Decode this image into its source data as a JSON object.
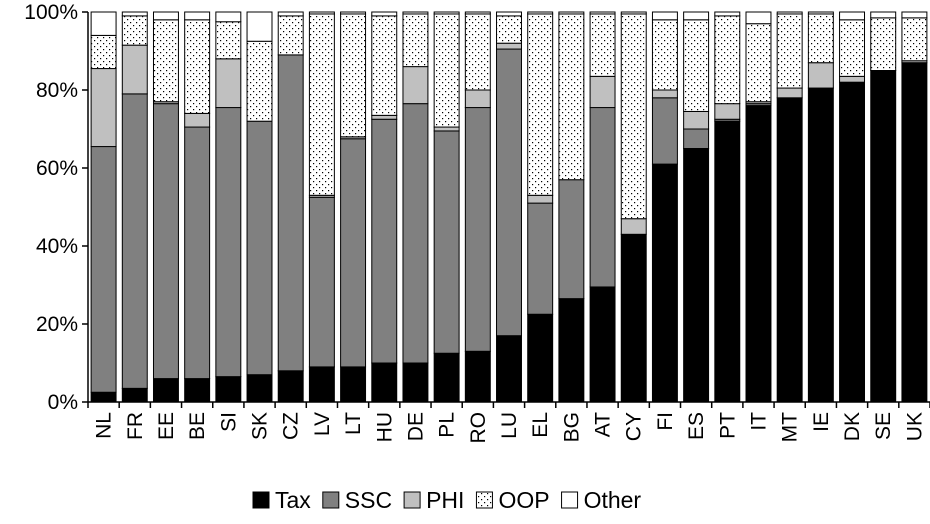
{
  "chart_data": {
    "type": "bar",
    "stacked": true,
    "categories": [
      "NL",
      "FR",
      "EE",
      "BE",
      "SI",
      "SK",
      "CZ",
      "LV",
      "LT",
      "HU",
      "DE",
      "PL",
      "RO",
      "LU",
      "EL",
      "BG",
      "AT",
      "CY",
      "FI",
      "ES",
      "PT",
      "IT",
      "MT",
      "IE",
      "DK",
      "SE",
      "UK"
    ],
    "ylim": [
      0,
      100
    ],
    "yticks": [
      "0%",
      "20%",
      "40%",
      "60%",
      "80%",
      "100%"
    ],
    "legend_position": "bottom",
    "grid": false,
    "series": [
      {
        "name": "Tax",
        "fill": "#000000",
        "pattern": "solid",
        "values": [
          2.5,
          3.5,
          6,
          6,
          6.5,
          7,
          8,
          9,
          9,
          10,
          10,
          12.5,
          13,
          17,
          22.5,
          26.5,
          29.5,
          43,
          61,
          65,
          72,
          76,
          78,
          80.5,
          82,
          85,
          87
        ]
      },
      {
        "name": "SSC",
        "fill": "#808080",
        "pattern": "solid",
        "values": [
          63,
          75.5,
          70.5,
          64.5,
          69,
          65,
          81,
          43.5,
          58.5,
          62.5,
          66.5,
          57,
          62.5,
          73.5,
          28.5,
          30.5,
          46,
          0,
          17,
          5,
          0.5,
          0.5,
          0,
          0,
          0,
          0,
          0
        ]
      },
      {
        "name": "PHI",
        "fill": "#c0c0c0",
        "pattern": "solid",
        "values": [
          20,
          12.5,
          0.5,
          3.5,
          12.5,
          0,
          0,
          0.5,
          0.5,
          1,
          9.5,
          1,
          4.5,
          1.5,
          2,
          0,
          8,
          4,
          2,
          4.5,
          4,
          0.5,
          2.5,
          6.5,
          1.5,
          0,
          0.5
        ]
      },
      {
        "name": "OOP",
        "fill": "#ffffff",
        "pattern": "dots",
        "values": [
          8.5,
          7.5,
          21,
          24,
          9.5,
          20.5,
          10,
          46.5,
          31.5,
          25.5,
          13.5,
          29,
          19.5,
          7,
          46.5,
          42.5,
          16,
          52.5,
          18,
          23.5,
          22.5,
          20,
          19,
          12.5,
          14.5,
          13.5,
          11
        ]
      },
      {
        "name": "Other",
        "fill": "#ffffff",
        "pattern": "solid",
        "values": [
          6,
          1,
          2,
          2,
          2.5,
          7.5,
          1,
          0.5,
          0.5,
          1,
          0.5,
          0.5,
          0.5,
          1,
          0.5,
          0.5,
          0.5,
          0.5,
          2,
          2,
          1,
          3,
          0.5,
          0.5,
          2,
          1.5,
          1.5
        ]
      }
    ]
  }
}
